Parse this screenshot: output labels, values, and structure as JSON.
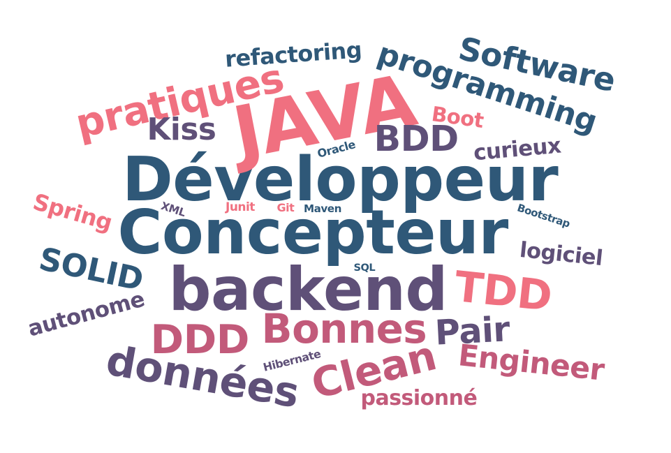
{
  "colors": {
    "blue": "#2f5878",
    "purple": "#5f5078",
    "pink": "#f07080",
    "rose": "#c25a7a",
    "mauve": "#8a5a80"
  },
  "words": [
    {
      "id": "developpeur",
      "text": "Développeur",
      "color": "#2f5878"
    },
    {
      "id": "concepteur",
      "text": "Concepteur",
      "color": "#2f5878"
    },
    {
      "id": "backend",
      "text": "backend",
      "color": "#5f5078"
    },
    {
      "id": "java",
      "text": "JAVA",
      "color": "#f07080"
    },
    {
      "id": "pratiques",
      "text": "pratiques",
      "color": "#f07080"
    },
    {
      "id": "programming",
      "text": "programming",
      "color": "#2f5878"
    },
    {
      "id": "software",
      "text": "Software",
      "color": "#2f5878"
    },
    {
      "id": "refactoring",
      "text": "refactoring",
      "color": "#2f5878"
    },
    {
      "id": "bdd",
      "text": "BDD",
      "color": "#5f5078"
    },
    {
      "id": "kiss",
      "text": "Kiss",
      "color": "#5f5078"
    },
    {
      "id": "boot",
      "text": "Boot",
      "color": "#f07080"
    },
    {
      "id": "curieux",
      "text": "curieux",
      "color": "#5f5078"
    },
    {
      "id": "oracle",
      "text": "Oracle",
      "color": "#2f5878"
    },
    {
      "id": "spring",
      "text": "Spring",
      "color": "#f07080"
    },
    {
      "id": "xml",
      "text": "XML",
      "color": "#5f5078"
    },
    {
      "id": "junit",
      "text": "Junit",
      "color": "#f07080"
    },
    {
      "id": "git",
      "text": "Git",
      "color": "#f07080"
    },
    {
      "id": "maven",
      "text": "Maven",
      "color": "#2f5878"
    },
    {
      "id": "bootstrap",
      "text": "Bootstrap",
      "color": "#2f5878"
    },
    {
      "id": "logiciel",
      "text": "logiciel",
      "color": "#5f5078"
    },
    {
      "id": "solid",
      "text": "SOLID",
      "color": "#2f5878"
    },
    {
      "id": "sql",
      "text": "SQL",
      "color": "#2f5878"
    },
    {
      "id": "tdd",
      "text": "TDD",
      "color": "#f07080"
    },
    {
      "id": "autonome",
      "text": "autonome",
      "color": "#5f5078"
    },
    {
      "id": "ddd",
      "text": "DDD",
      "color": "#c25a7a"
    },
    {
      "id": "bonnes",
      "text": "Bonnes",
      "color": "#c25a7a"
    },
    {
      "id": "pair",
      "text": "Pair",
      "color": "#5f5078"
    },
    {
      "id": "donnees",
      "text": "données",
      "color": "#5f5078"
    },
    {
      "id": "hibernate",
      "text": "Hibernate",
      "color": "#5f5078"
    },
    {
      "id": "clean",
      "text": "Clean",
      "color": "#c25a7a"
    },
    {
      "id": "engineer",
      "text": "Engineer",
      "color": "#c25a7a"
    },
    {
      "id": "passionne",
      "text": "passionné",
      "color": "#c25a7a"
    }
  ]
}
